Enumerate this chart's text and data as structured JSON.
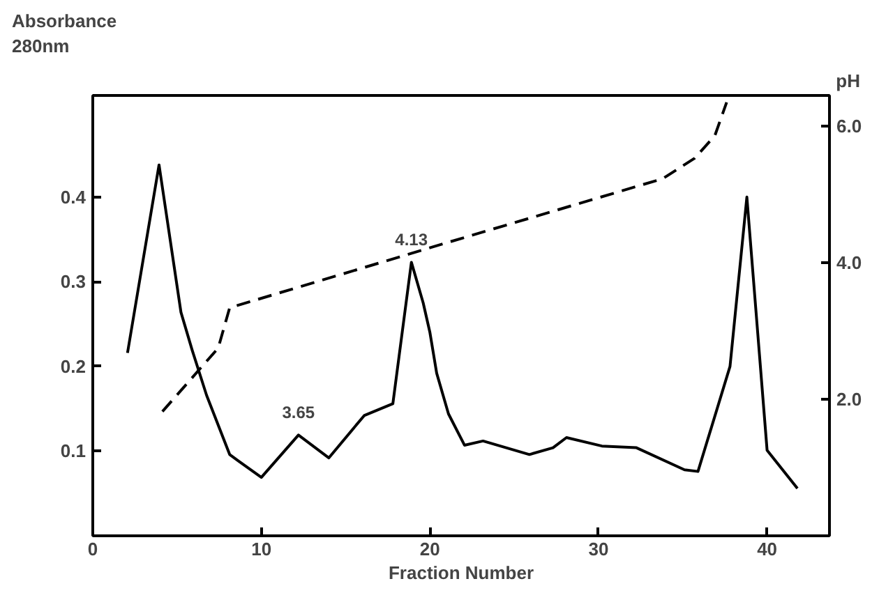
{
  "chart_data": {
    "type": "line",
    "xlabel": "Fraction Number",
    "ylabel": "Absorbance\n280nm",
    "y2label": "pH",
    "xlim": [
      0,
      43.7
    ],
    "xticks": [
      0,
      10,
      20,
      30,
      40
    ],
    "ylim": [
      0,
      0.52
    ],
    "yticks": [
      0.1,
      0.2,
      0.3,
      0.4
    ],
    "y2lim": [
      0,
      6.45
    ],
    "y2ticks": [
      {
        "value": 2,
        "label": "2.0"
      },
      {
        "value": 4,
        "label": "4.0"
      },
      {
        "value": 6,
        "label": "6.0"
      }
    ],
    "grid": false,
    "marker": "none",
    "series": [
      {
        "color": "#000000",
        "line_style": "solid",
        "x": [
          2.06,
          3.93,
          5.23,
          5.9,
          6.75,
          8.12,
          8.67,
          10,
          12.2,
          14.0,
          16.1,
          17.8,
          18.9,
          19.6,
          20.0,
          20.4,
          21.1,
          22.05,
          23.15,
          25.9,
          27.3,
          28.1,
          30.2,
          32.25,
          35.1,
          35.9,
          37.8,
          38.8,
          40.0,
          41.8
        ],
        "values": [
          0.216,
          0.438,
          0.264,
          0.219,
          0.166,
          0.096,
          0.088,
          0.069,
          0.119,
          0.092,
          0.142,
          0.156,
          0.323,
          0.275,
          0.24,
          0.192,
          0.144,
          0.107,
          0.112,
          0.096,
          0.104,
          0.116,
          0.106,
          0.104,
          0.078,
          0.076,
          0.2,
          0.4,
          0.101,
          0.056
        ]
      },
      {
        "color": "#000000",
        "line_style": "dashed",
        "axis": "y2",
        "x": [
          4.13,
          7.44,
          8.12,
          21.1,
          33.8,
          35.7,
          36.9,
          37.6
        ],
        "values": [
          1.82,
          2.75,
          3.34,
          4.3,
          5.23,
          5.53,
          5.86,
          6.35
        ]
      }
    ],
    "annotations": [
      {
        "text": "3.65",
        "x": 12.2,
        "y": 0.119
      },
      {
        "text": "4.13",
        "x": 18.9,
        "y": 0.323
      }
    ]
  }
}
